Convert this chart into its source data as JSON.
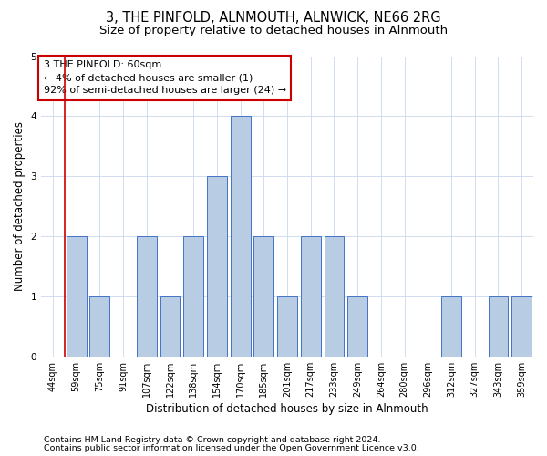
{
  "title": "3, THE PINFOLD, ALNMOUTH, ALNWICK, NE66 2RG",
  "subtitle": "Size of property relative to detached houses in Alnmouth",
  "xlabel": "Distribution of detached houses by size in Alnmouth",
  "ylabel": "Number of detached properties",
  "categories": [
    "44sqm",
    "59sqm",
    "75sqm",
    "91sqm",
    "107sqm",
    "122sqm",
    "138sqm",
    "154sqm",
    "170sqm",
    "185sqm",
    "201sqm",
    "217sqm",
    "233sqm",
    "249sqm",
    "264sqm",
    "280sqm",
    "296sqm",
    "312sqm",
    "327sqm",
    "343sqm",
    "359sqm"
  ],
  "values": [
    0,
    2,
    1,
    0,
    2,
    1,
    2,
    3,
    4,
    2,
    1,
    2,
    2,
    1,
    0,
    0,
    0,
    1,
    0,
    1,
    1
  ],
  "bar_color": "#b8cce4",
  "bar_edge_color": "#4472c4",
  "annotation_text": "3 THE PINFOLD: 60sqm\n← 4% of detached houses are smaller (1)\n92% of semi-detached houses are larger (24) →",
  "annotation_box_color": "#ffffff",
  "annotation_box_edge_color": "#cc0000",
  "footnote1": "Contains HM Land Registry data © Crown copyright and database right 2024.",
  "footnote2": "Contains public sector information licensed under the Open Government Licence v3.0.",
  "ylim": [
    0,
    5
  ],
  "yticks": [
    0,
    1,
    2,
    3,
    4,
    5
  ],
  "bg_color": "#ffffff",
  "grid_color": "#c8d8ea",
  "title_fontsize": 10.5,
  "subtitle_fontsize": 9.5,
  "tick_fontsize": 7,
  "ylabel_fontsize": 8.5,
  "xlabel_fontsize": 8.5,
  "footnote_fontsize": 6.8,
  "annotation_fontsize": 8.0
}
